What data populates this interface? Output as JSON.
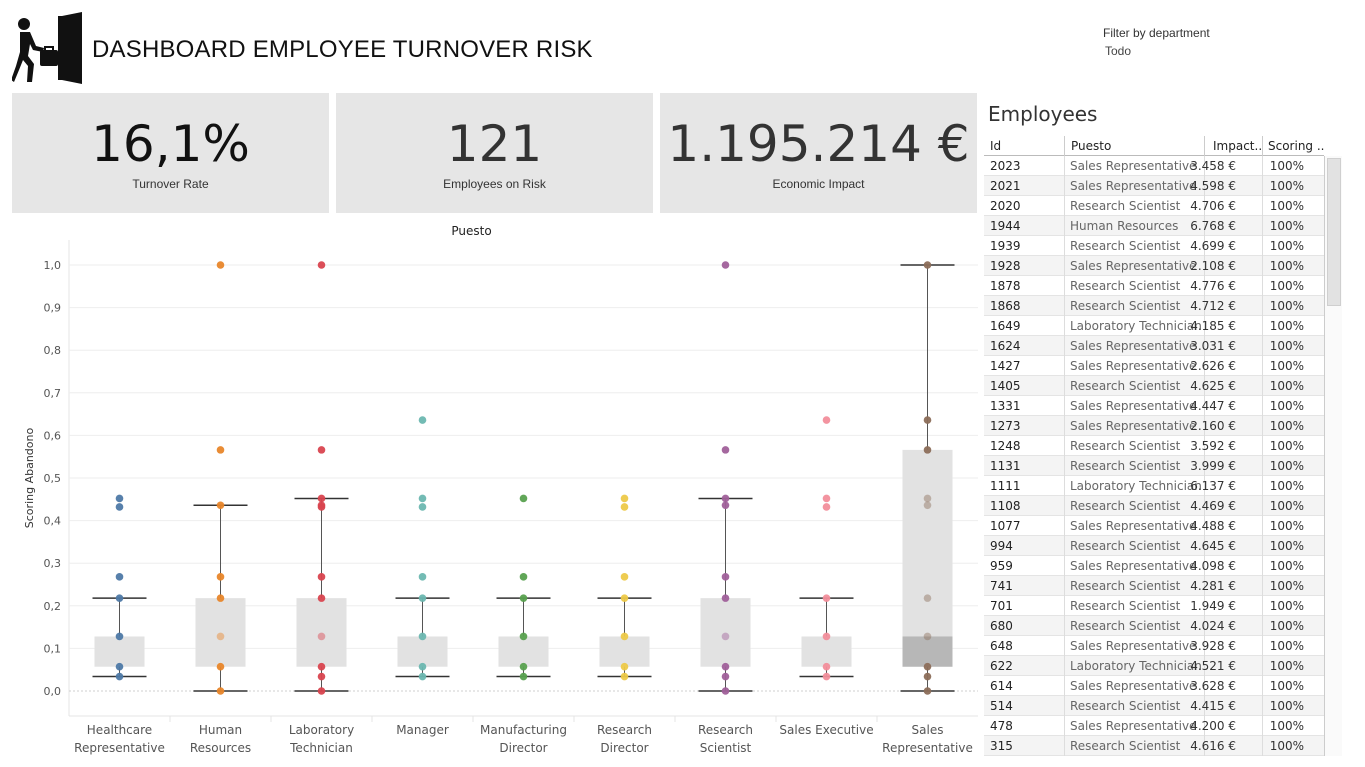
{
  "header": {
    "title": "DASHBOARD EMPLOYEE TURNOVER RISK",
    "logo_icon": "person-leaving-door-icon"
  },
  "filter": {
    "label": "Filter by department",
    "value": "Todo"
  },
  "kpis": [
    {
      "value": "16,1%",
      "label": "Turnover Rate"
    },
    {
      "value": "121",
      "label": "Employees on Risk"
    },
    {
      "value": "1.195.214 €",
      "label": "Economic Impact"
    }
  ],
  "chart_data": {
    "type": "scatter",
    "title": "Puesto",
    "ylabel": "Scoring Abandono",
    "ylim": [
      0,
      1
    ],
    "yticks": [
      "0,0",
      "0,1",
      "0,2",
      "0,3",
      "0,4",
      "0,5",
      "0,6",
      "0,7",
      "0,8",
      "0,9",
      "1,0"
    ],
    "categories": [
      {
        "label_lines": [
          "Healthcare",
          "Representative"
        ],
        "color": "#4e79a7",
        "points": [
          0.034,
          0.057,
          0.128,
          0.218,
          0.268,
          0.432,
          0.452
        ],
        "box": {
          "low": 0.034,
          "q1": 0.057,
          "q3": 0.128,
          "high": 0.218
        }
      },
      {
        "label_lines": [
          "Human",
          "Resources"
        ],
        "color": "#e8862a",
        "points": [
          0.0,
          0.057,
          0.128,
          0.218,
          0.268,
          0.436,
          0.566,
          1.0
        ],
        "box": {
          "low": 0.0,
          "q1": 0.057,
          "q3": 0.218,
          "high": 0.436
        }
      },
      {
        "label_lines": [
          "Laboratory",
          "Technician"
        ],
        "color": "#d9454f",
        "points": [
          0.0,
          0.034,
          0.057,
          0.128,
          0.218,
          0.268,
          0.432,
          0.436,
          0.452,
          0.566,
          1.0
        ],
        "box": {
          "low": 0.0,
          "q1": 0.057,
          "q3": 0.218,
          "high": 0.452
        }
      },
      {
        "label_lines": [
          "Manager"
        ],
        "color": "#6bb7b0",
        "points": [
          0.034,
          0.057,
          0.128,
          0.218,
          0.268,
          0.432,
          0.452,
          0.636
        ],
        "box": {
          "low": 0.034,
          "q1": 0.057,
          "q3": 0.128,
          "high": 0.218
        }
      },
      {
        "label_lines": [
          "Manufacturing",
          "Director"
        ],
        "color": "#59a14f",
        "points": [
          0.034,
          0.057,
          0.128,
          0.218,
          0.268,
          0.452
        ],
        "box": {
          "low": 0.034,
          "q1": 0.057,
          "q3": 0.128,
          "high": 0.218
        }
      },
      {
        "label_lines": [
          "Research",
          "Director"
        ],
        "color": "#edc948",
        "points": [
          0.034,
          0.057,
          0.128,
          0.218,
          0.268,
          0.432,
          0.452
        ],
        "box": {
          "low": 0.034,
          "q1": 0.057,
          "q3": 0.128,
          "high": 0.218
        }
      },
      {
        "label_lines": [
          "Research",
          "Scientist"
        ],
        "color": "#a0609a",
        "points": [
          0.0,
          0.034,
          0.057,
          0.128,
          0.218,
          0.268,
          0.436,
          0.452,
          0.566,
          1.0
        ],
        "box": {
          "low": 0.0,
          "q1": 0.057,
          "q3": 0.218,
          "high": 0.452
        }
      },
      {
        "label_lines": [
          "Sales Executive"
        ],
        "color": "#f28e9b",
        "points": [
          0.034,
          0.057,
          0.128,
          0.218,
          0.432,
          0.452,
          0.636
        ],
        "box": {
          "low": 0.034,
          "q1": 0.057,
          "q3": 0.128,
          "high": 0.218
        }
      },
      {
        "label_lines": [
          "Sales",
          "Representative"
        ],
        "color": "#8c6e5a",
        "points": [
          0.0,
          0.034,
          0.057,
          0.128,
          0.218,
          0.436,
          0.452,
          0.566,
          0.636,
          1.0
        ],
        "box": {
          "low": 0.0,
          "q1": 0.057,
          "median": 0.128,
          "q3": 0.566,
          "high": 1.0
        }
      }
    ]
  },
  "table": {
    "title": "Employees",
    "columns": [
      "Id",
      "Puesto",
      "Impact..",
      "Scoring .."
    ],
    "rows": [
      [
        "2023",
        "Sales Representative",
        "3.458 €",
        "100%"
      ],
      [
        "2021",
        "Sales Representative",
        "4.598 €",
        "100%"
      ],
      [
        "2020",
        "Research Scientist",
        "4.706 €",
        "100%"
      ],
      [
        "1944",
        "Human Resources",
        "6.768 €",
        "100%"
      ],
      [
        "1939",
        "Research Scientist",
        "4.699 €",
        "100%"
      ],
      [
        "1928",
        "Sales Representative",
        "2.108 €",
        "100%"
      ],
      [
        "1878",
        "Research Scientist",
        "4.776 €",
        "100%"
      ],
      [
        "1868",
        "Research Scientist",
        "4.712 €",
        "100%"
      ],
      [
        "1649",
        "Laboratory Technician",
        "4.185 €",
        "100%"
      ],
      [
        "1624",
        "Sales Representative",
        "3.031 €",
        "100%"
      ],
      [
        "1427",
        "Sales Representative",
        "2.626 €",
        "100%"
      ],
      [
        "1405",
        "Research Scientist",
        "4.625 €",
        "100%"
      ],
      [
        "1331",
        "Sales Representative",
        "4.447 €",
        "100%"
      ],
      [
        "1273",
        "Sales Representative",
        "2.160 €",
        "100%"
      ],
      [
        "1248",
        "Research Scientist",
        "3.592 €",
        "100%"
      ],
      [
        "1131",
        "Research Scientist",
        "3.999 €",
        "100%"
      ],
      [
        "1111",
        "Laboratory Technician",
        "6.137 €",
        "100%"
      ],
      [
        "1108",
        "Research Scientist",
        "4.469 €",
        "100%"
      ],
      [
        "1077",
        "Sales Representative",
        "4.488 €",
        "100%"
      ],
      [
        "994",
        "Research Scientist",
        "4.645 €",
        "100%"
      ],
      [
        "959",
        "Sales Representative",
        "4.098 €",
        "100%"
      ],
      [
        "741",
        "Research Scientist",
        "4.281 €",
        "100%"
      ],
      [
        "701",
        "Research Scientist",
        "1.949 €",
        "100%"
      ],
      [
        "680",
        "Research Scientist",
        "4.024 €",
        "100%"
      ],
      [
        "648",
        "Sales Representative",
        "3.928 €",
        "100%"
      ],
      [
        "622",
        "Laboratory Technician",
        "4.521 €",
        "100%"
      ],
      [
        "614",
        "Sales Representative",
        "3.628 €",
        "100%"
      ],
      [
        "514",
        "Research Scientist",
        "4.415 €",
        "100%"
      ],
      [
        "478",
        "Sales Representative",
        "4.200 €",
        "100%"
      ],
      [
        "315",
        "Research Scientist",
        "4.616 €",
        "100%"
      ]
    ]
  }
}
